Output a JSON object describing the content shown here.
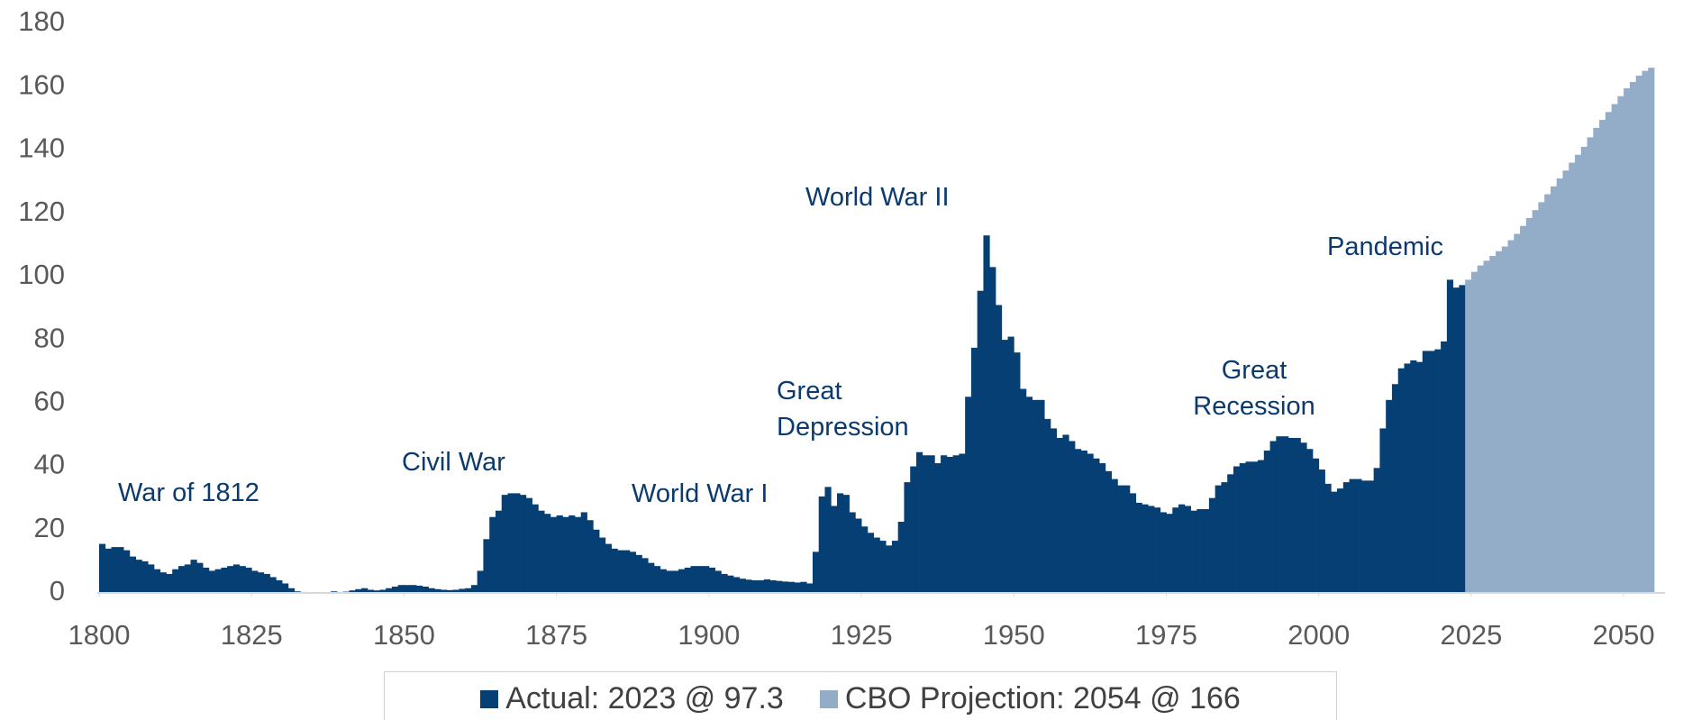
{
  "chart_data": {
    "type": "bar",
    "x": [
      1800,
      1801,
      1802,
      1803,
      1804,
      1805,
      1806,
      1807,
      1808,
      1809,
      1810,
      1811,
      1812,
      1813,
      1814,
      1815,
      1816,
      1817,
      1818,
      1819,
      1820,
      1821,
      1822,
      1823,
      1824,
      1825,
      1826,
      1827,
      1828,
      1829,
      1830,
      1831,
      1832,
      1833,
      1834,
      1835,
      1836,
      1837,
      1838,
      1839,
      1840,
      1841,
      1842,
      1843,
      1844,
      1845,
      1846,
      1847,
      1848,
      1849,
      1850,
      1851,
      1852,
      1853,
      1854,
      1855,
      1856,
      1857,
      1858,
      1859,
      1860,
      1861,
      1862,
      1863,
      1864,
      1865,
      1866,
      1867,
      1868,
      1869,
      1870,
      1871,
      1872,
      1873,
      1874,
      1875,
      1876,
      1877,
      1878,
      1879,
      1880,
      1881,
      1882,
      1883,
      1884,
      1885,
      1886,
      1887,
      1888,
      1889,
      1890,
      1891,
      1892,
      1893,
      1894,
      1895,
      1896,
      1897,
      1898,
      1899,
      1900,
      1901,
      1902,
      1903,
      1904,
      1905,
      1906,
      1907,
      1908,
      1909,
      1910,
      1911,
      1912,
      1913,
      1914,
      1915,
      1916,
      1917,
      1918,
      1919,
      1920,
      1921,
      1922,
      1923,
      1924,
      1925,
      1926,
      1927,
      1928,
      1929,
      1930,
      1931,
      1932,
      1933,
      1934,
      1935,
      1936,
      1937,
      1938,
      1939,
      1940,
      1941,
      1942,
      1943,
      1944,
      1945,
      1946,
      1947,
      1948,
      1949,
      1950,
      1951,
      1952,
      1953,
      1954,
      1955,
      1956,
      1957,
      1958,
      1959,
      1960,
      1961,
      1962,
      1963,
      1964,
      1965,
      1966,
      1967,
      1968,
      1969,
      1970,
      1971,
      1972,
      1973,
      1974,
      1975,
      1976,
      1977,
      1978,
      1979,
      1980,
      1981,
      1982,
      1983,
      1984,
      1985,
      1986,
      1987,
      1988,
      1989,
      1990,
      1991,
      1992,
      1993,
      1994,
      1995,
      1996,
      1997,
      1998,
      1999,
      2000,
      2001,
      2002,
      2003,
      2004,
      2005,
      2006,
      2007,
      2008,
      2009,
      2010,
      2011,
      2012,
      2013,
      2014,
      2015,
      2016,
      2017,
      2018,
      2019,
      2020,
      2021,
      2022,
      2023,
      2024,
      2025,
      2026,
      2027,
      2028,
      2029,
      2030,
      2031,
      2032,
      2033,
      2034,
      2035,
      2036,
      2037,
      2038,
      2039,
      2040,
      2041,
      2042,
      2043,
      2044,
      2045,
      2046,
      2047,
      2048,
      2049,
      2050,
      2051,
      2052,
      2053,
      2054
    ],
    "series": [
      {
        "name": "Actual: 2023 @ 97.3",
        "color": "#063f73",
        "values": [
          15.5,
          14,
          14.5,
          14.5,
          13.5,
          11.5,
          10.5,
          10,
          9,
          7.5,
          6.5,
          6,
          7.5,
          8.5,
          9,
          10.5,
          9.5,
          8,
          7,
          7.5,
          8,
          8.5,
          9,
          8.5,
          8,
          7,
          6.5,
          6,
          5,
          4,
          3,
          1.5,
          0.5,
          0.3,
          0.1,
          0,
          0,
          0.2,
          0.5,
          0.3,
          0.4,
          0.8,
          1.2,
          1.5,
          1,
          0.8,
          1,
          1.5,
          2,
          2.5,
          2.5,
          2.5,
          2.3,
          2,
          1.5,
          1.2,
          1,
          0.9,
          1,
          1.3,
          1.5,
          2.5,
          7,
          17,
          24,
          26,
          31,
          31.5,
          31.5,
          31,
          30,
          28,
          26,
          25,
          24,
          24.5,
          24,
          24.5,
          24,
          25.5,
          23,
          20,
          17.5,
          15.5,
          14,
          13.5,
          13.5,
          13,
          12,
          11,
          9.5,
          8.5,
          7.5,
          7,
          7,
          7.5,
          8,
          8.5,
          8.5,
          8.5,
          8,
          7,
          6,
          5.5,
          5,
          4.5,
          4.2,
          4,
          4,
          4.3,
          4,
          3.8,
          3.6,
          3.5,
          3.3,
          3.5,
          3,
          13,
          30.5,
          33.5,
          27.5,
          31.5,
          31,
          25.5,
          23.5,
          21,
          19,
          17.5,
          16.5,
          15,
          16.5,
          22.5,
          35,
          40,
          44.5,
          43.5,
          43.5,
          41,
          43.5,
          43,
          43.5,
          44,
          62,
          77.5,
          95.5,
          113,
          103,
          91,
          80,
          81,
          76,
          64.5,
          62,
          61,
          61,
          55,
          52,
          49,
          50,
          48,
          45.5,
          45,
          44,
          42.5,
          41,
          38.5,
          36,
          34,
          34,
          31.5,
          28.5,
          28,
          27.5,
          27,
          25.5,
          25,
          27,
          28,
          27.5,
          26,
          26.5,
          26.5,
          30,
          34,
          35,
          37.5,
          40,
          41,
          41.5,
          41.5,
          42,
          45,
          48,
          49.5,
          49.5,
          49,
          49,
          47.5,
          45.5,
          42.5,
          39,
          34.5,
          32,
          33,
          35,
          36,
          36,
          35.5,
          35.5,
          39.5,
          52,
          61,
          66,
          71,
          72.5,
          73.5,
          73,
          76.5,
          76.5,
          77,
          79.5,
          99,
          96.5,
          97.3,
          null,
          null,
          null,
          null,
          null,
          null,
          null,
          null,
          null,
          null,
          null,
          null,
          null,
          null,
          null,
          null,
          null,
          null,
          null,
          null,
          null,
          null,
          null,
          null,
          null,
          null,
          null,
          null,
          null,
          null,
          null
        ]
      },
      {
        "name": "CBO Projection: 2054 @ 166",
        "color": "#93adc8",
        "values": [
          null,
          null,
          null,
          null,
          null,
          null,
          null,
          null,
          null,
          null,
          null,
          null,
          null,
          null,
          null,
          null,
          null,
          null,
          null,
          null,
          null,
          null,
          null,
          null,
          null,
          null,
          null,
          null,
          null,
          null,
          null,
          null,
          null,
          null,
          null,
          null,
          null,
          null,
          null,
          null,
          null,
          null,
          null,
          null,
          null,
          null,
          null,
          null,
          null,
          null,
          null,
          null,
          null,
          null,
          null,
          null,
          null,
          null,
          null,
          null,
          null,
          null,
          null,
          null,
          null,
          null,
          null,
          null,
          null,
          null,
          null,
          null,
          null,
          null,
          null,
          null,
          null,
          null,
          null,
          null,
          null,
          null,
          null,
          null,
          null,
          null,
          null,
          null,
          null,
          null,
          null,
          null,
          null,
          null,
          null,
          null,
          null,
          null,
          null,
          null,
          null,
          null,
          null,
          null,
          null,
          null,
          null,
          null,
          null,
          null,
          null,
          null,
          null,
          null,
          null,
          null,
          null,
          null,
          null,
          null,
          null,
          null,
          null,
          null,
          null,
          null,
          null,
          null,
          null,
          null,
          null,
          null,
          null,
          null,
          null,
          null,
          null,
          null,
          null,
          null,
          null,
          null,
          null,
          null,
          null,
          null,
          null,
          null,
          null,
          null,
          null,
          null,
          null,
          null,
          null,
          null,
          null,
          null,
          null,
          null,
          null,
          null,
          null,
          null,
          null,
          null,
          null,
          null,
          null,
          null,
          null,
          null,
          null,
          null,
          null,
          null,
          null,
          null,
          null,
          null,
          null,
          null,
          null,
          null,
          null,
          null,
          null,
          null,
          null,
          null,
          null,
          null,
          null,
          null,
          null,
          null,
          null,
          null,
          null,
          null,
          null,
          null,
          null,
          null,
          null,
          null,
          null,
          null,
          null,
          null,
          null,
          null,
          null,
          null,
          null,
          null,
          null,
          null,
          null,
          null,
          null,
          null,
          null,
          null,
          99,
          101.5,
          103.5,
          105,
          106.5,
          108,
          109.5,
          111.5,
          113.5,
          116,
          118.5,
          121,
          123.5,
          126,
          128.5,
          131,
          133.5,
          136,
          138.5,
          141,
          144,
          147,
          149.5,
          152,
          154.5,
          157,
          159.5,
          161.5,
          163.5,
          165,
          166
        ]
      }
    ],
    "xlim": [
      1800,
      2055
    ],
    "xticks": [
      1800,
      1825,
      1850,
      1875,
      1900,
      1925,
      1950,
      1975,
      2000,
      2025,
      2050
    ],
    "ylim": [
      0,
      180
    ],
    "yticks": [
      0,
      20,
      40,
      60,
      80,
      100,
      120,
      140,
      160,
      180
    ],
    "annotations": [
      "War of 1812",
      "Civil War",
      "World War I",
      "Great Depression",
      "World War II",
      "Great Recession",
      "Pandemic"
    ]
  }
}
